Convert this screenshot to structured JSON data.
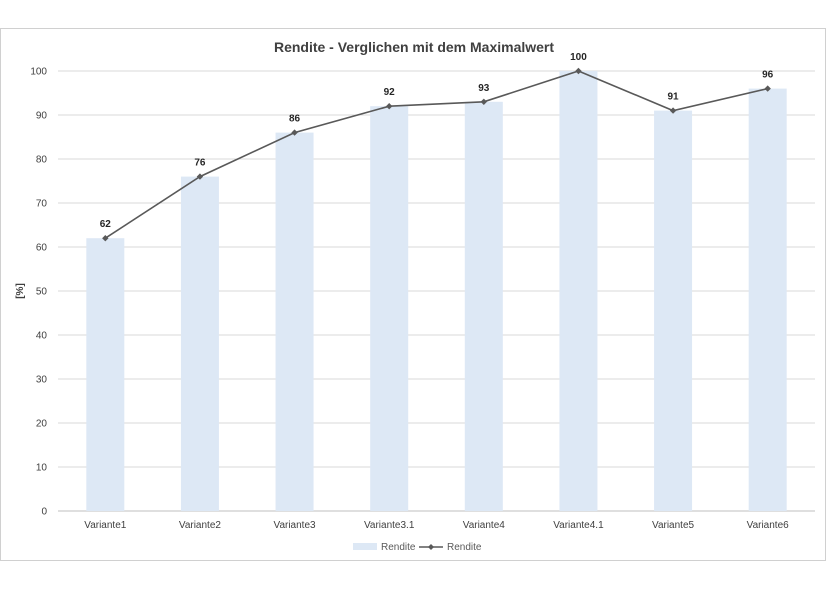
{
  "chart_data": {
    "type": "bar",
    "title": "Rendite - Verglichen mit dem Maximalwert",
    "xlabel": "",
    "ylabel": "[%]",
    "categories": [
      "Variante1",
      "Variante2",
      "Variante3",
      "Variante3.1",
      "Variante4",
      "Variante4.1",
      "Variante5",
      "Variante6"
    ],
    "series": [
      {
        "name": "Rendite",
        "kind": "bar",
        "color": "#dde8f5",
        "values": [
          62,
          76,
          86,
          92,
          93,
          100,
          91,
          96
        ]
      },
      {
        "name": "Rendite",
        "kind": "line",
        "color": "#595959",
        "marker": "diamond",
        "values": [
          62,
          76,
          86,
          92,
          93,
          100,
          91,
          96
        ]
      }
    ],
    "data_labels": [
      "62",
      "76",
      "86",
      "92",
      "93",
      "100",
      "91",
      "96"
    ],
    "ylim": [
      0,
      100
    ],
    "yticks": [
      0,
      10,
      20,
      30,
      40,
      50,
      60,
      70,
      80,
      90,
      100
    ],
    "grid": true,
    "legend_position": "bottom"
  }
}
